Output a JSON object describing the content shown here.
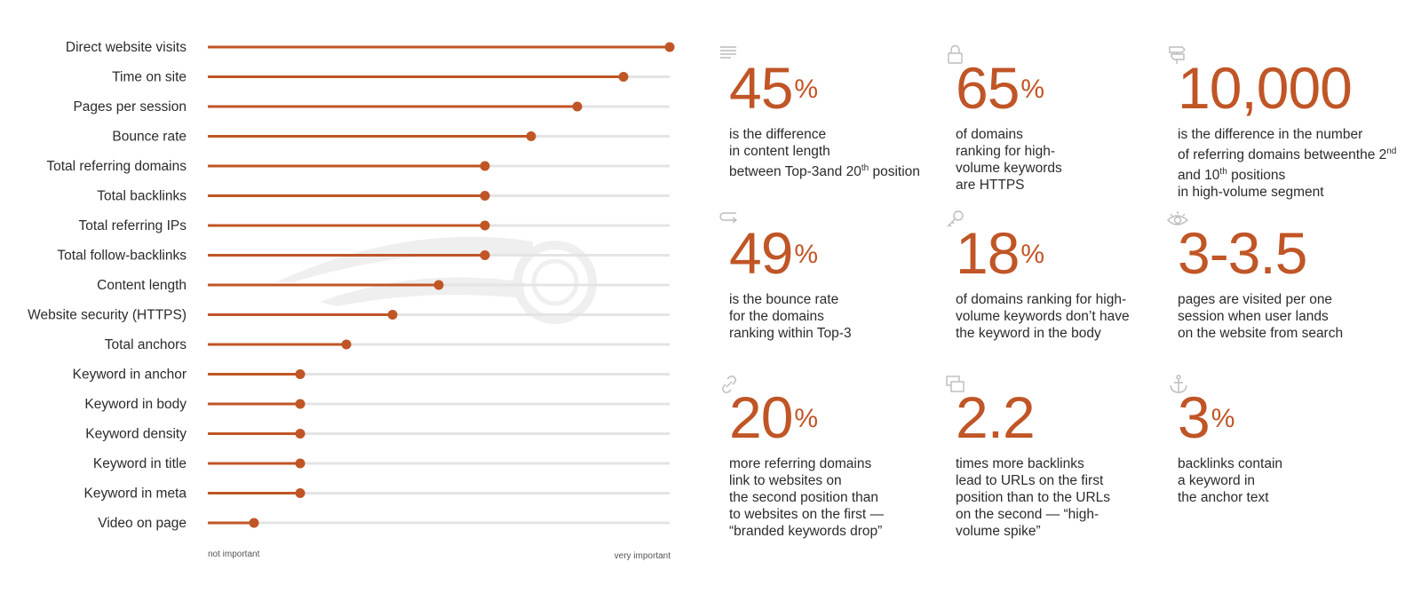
{
  "chart_data": {
    "type": "lollipop",
    "categories": [
      "Direct website visits",
      "Time on site",
      "Pages per session",
      "Bounce rate",
      "Total referring domains",
      "Total backlinks",
      "Total referring IPs",
      "Total follow-backlinks",
      "Content length",
      "Website security (HTTPS)",
      "Total anchors",
      "Keyword in anchor",
      "Keyword in body",
      "Keyword density",
      "Keyword in title",
      "Keyword in meta",
      "Video on page"
    ],
    "values": [
      1.0,
      0.9,
      0.8,
      0.7,
      0.6,
      0.6,
      0.6,
      0.6,
      0.5,
      0.4,
      0.3,
      0.2,
      0.2,
      0.2,
      0.2,
      0.2,
      0.1
    ],
    "xlim": [
      0,
      1
    ],
    "x_min_label": "not important",
    "x_max_label": "very important",
    "colors": {
      "accent": "#c05526",
      "track": "#e4e4e4"
    }
  },
  "stats": [
    {
      "icon": "lines-icon",
      "value": "45",
      "suffix": "%",
      "desc": [
        "is the difference",
        "in content length",
        "between Top-3",
        "and 20",
        "th",
        " position"
      ]
    },
    {
      "icon": "lock-icon",
      "value": "65",
      "suffix": "%",
      "desc": [
        "of domains",
        "ranking for high-",
        "volume keywords",
        "are HTTPS"
      ]
    },
    {
      "icon": "signpost-icon",
      "value": "10,000",
      "suffix": "",
      "desc": [
        "is the difference in the number",
        "of referring domains between",
        "the 2",
        "nd",
        " and 10",
        "th",
        " positions",
        "in high-volume segment"
      ]
    },
    {
      "icon": "return-arrow-icon",
      "value": "49",
      "suffix": "%",
      "desc": [
        "is the bounce rate",
        "for the domains",
        "ranking within Top-3"
      ]
    },
    {
      "icon": "key-icon",
      "value": "18",
      "suffix": "%",
      "desc": [
        "of domains ranking for high-",
        "volume keywords don’t have",
        "the keyword in the body"
      ]
    },
    {
      "icon": "eye-icon",
      "value": "3-3.5",
      "suffix": "",
      "desc": [
        "pages are visited per one",
        "session when user lands",
        "on the website from search"
      ]
    },
    {
      "icon": "link-icon",
      "value": "20",
      "suffix": "%",
      "desc": [
        "more referring domains",
        "link to websites on",
        "the second position than",
        "to websites on the first —",
        "“branded keywords drop”"
      ]
    },
    {
      "icon": "windows-icon",
      "value": "2.2",
      "suffix": "",
      "desc": [
        "times more backlinks",
        "lead to URLs on the first",
        "position than to the URLs",
        "on the second — “high-",
        "volume spike”"
      ]
    },
    {
      "icon": "anchor-icon",
      "value": "3",
      "suffix": "%",
      "desc": [
        "backlinks contain",
        "a keyword in",
        "the anchor text"
      ]
    }
  ]
}
